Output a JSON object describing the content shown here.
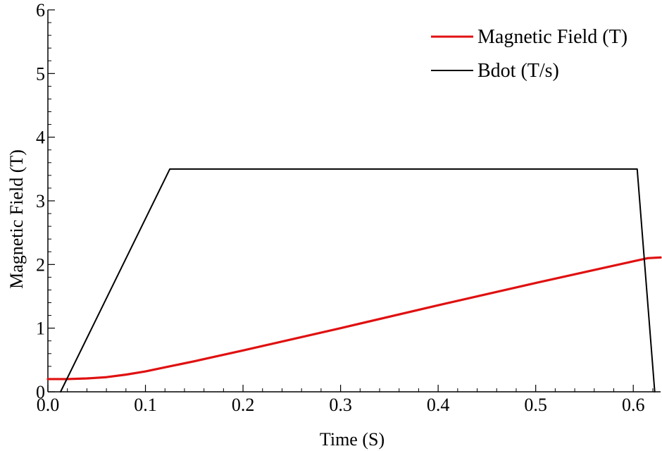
{
  "chart_data": {
    "type": "line",
    "xlabel": "Time   (S)",
    "ylabel": "Magnetic    Field    (T)",
    "xlim": [
      0.0,
      0.628
    ],
    "ylim": [
      0,
      6
    ],
    "x_ticks": [
      0.0,
      0.1,
      0.2,
      0.3,
      0.4,
      0.5,
      0.6
    ],
    "x_tick_labels": [
      "0.0",
      "0.1",
      "0.2",
      "0.3",
      "0.4",
      "0.5",
      "0.6"
    ],
    "y_ticks": [
      0,
      1,
      2,
      3,
      4,
      5,
      6
    ],
    "y_tick_labels": [
      "0",
      "1",
      "2",
      "3",
      "4",
      "5",
      "6"
    ],
    "grid": false,
    "legend_position": "top-right",
    "series": [
      {
        "name": "Magnetic Field (T)",
        "color": "#e01010",
        "x": [
          0.0,
          0.02,
          0.04,
          0.06,
          0.08,
          0.1,
          0.125,
          0.15,
          0.2,
          0.3,
          0.4,
          0.5,
          0.6,
          0.615,
          0.628
        ],
        "y": [
          0.2,
          0.2,
          0.21,
          0.23,
          0.27,
          0.32,
          0.4,
          0.48,
          0.65,
          1.0,
          1.36,
          1.71,
          2.05,
          2.1,
          2.11
        ]
      },
      {
        "name": "Bdot (T/s)",
        "color": "#000000",
        "x": [
          0.013,
          0.125,
          0.604,
          0.622
        ],
        "y": [
          0.0,
          3.5,
          3.5,
          0.0
        ]
      }
    ]
  }
}
